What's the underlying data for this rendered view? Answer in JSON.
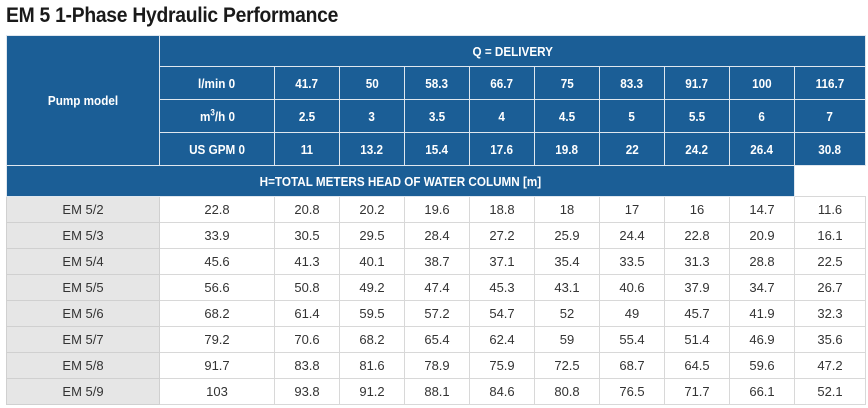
{
  "title": "EM 5 1-Phase Hydraulic Performance",
  "header": {
    "pump_model_label": "Pump model",
    "delivery_label": "Q = DELIVERY",
    "head_label": "H=TOTAL METERS HEAD OF WATER COLUMN [m]",
    "units": [
      {
        "label_pre": "l/min 0",
        "label_post": "",
        "values": [
          "41.7",
          "50",
          "58.3",
          "66.7",
          "75",
          "83.3",
          "91.7",
          "100",
          "116.7"
        ]
      },
      {
        "label_pre": "m",
        "label_sup": "3",
        "label_post": "/h 0",
        "values": [
          "2.5",
          "3",
          "3.5",
          "4",
          "4.5",
          "5",
          "5.5",
          "6",
          "7"
        ]
      },
      {
        "label_pre": "US GPM 0",
        "label_post": "",
        "values": [
          "11",
          "13.2",
          "15.4",
          "17.6",
          "19.8",
          "22",
          "24.2",
          "26.4",
          "30.8"
        ]
      }
    ]
  },
  "rows": [
    {
      "model": "EM 5/2",
      "values": [
        "22.8",
        "20.8",
        "20.2",
        "19.6",
        "18.8",
        "18",
        "17",
        "16",
        "14.7",
        "11.6"
      ]
    },
    {
      "model": "EM 5/3",
      "values": [
        "33.9",
        "30.5",
        "29.5",
        "28.4",
        "27.2",
        "25.9",
        "24.4",
        "22.8",
        "20.9",
        "16.1"
      ]
    },
    {
      "model": "EM 5/4",
      "values": [
        "45.6",
        "41.3",
        "40.1",
        "38.7",
        "37.1",
        "35.4",
        "33.5",
        "31.3",
        "28.8",
        "22.5"
      ]
    },
    {
      "model": "EM 5/5",
      "values": [
        "56.6",
        "50.8",
        "49.2",
        "47.4",
        "45.3",
        "43.1",
        "40.6",
        "37.9",
        "34.7",
        "26.7"
      ]
    },
    {
      "model": "EM 5/6",
      "values": [
        "68.2",
        "61.4",
        "59.5",
        "57.2",
        "54.7",
        "52",
        "49",
        "45.7",
        "41.9",
        "32.3"
      ]
    },
    {
      "model": "EM 5/7",
      "values": [
        "79.2",
        "70.6",
        "68.2",
        "65.4",
        "62.4",
        "59",
        "55.4",
        "51.4",
        "46.9",
        "35.6"
      ]
    },
    {
      "model": "EM 5/8",
      "values": [
        "91.7",
        "83.8",
        "81.6",
        "78.9",
        "75.9",
        "72.5",
        "68.7",
        "64.5",
        "59.6",
        "47.2"
      ]
    },
    {
      "model": "EM 5/9",
      "values": [
        "103",
        "93.8",
        "91.2",
        "88.1",
        "84.6",
        "80.8",
        "76.5",
        "71.7",
        "66.1",
        "52.1"
      ]
    }
  ]
}
